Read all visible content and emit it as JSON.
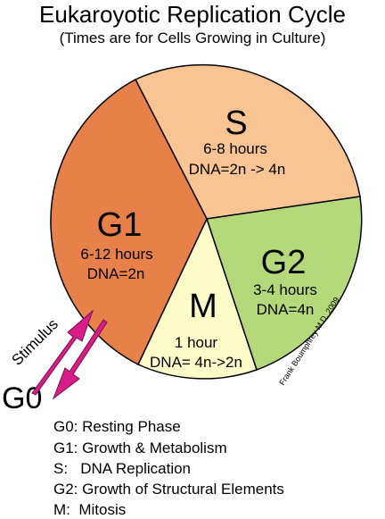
{
  "title": "Eukaroyotic Replication Cycle",
  "subtitle": "(Times are for Cells Growing in Culture)",
  "phases": {
    "s": {
      "label": "S",
      "time": "6-8 hours",
      "dna": "DNA=2n -> 4n",
      "color": "#f8c493"
    },
    "g2": {
      "label": "G2",
      "time": "3-4 hours",
      "dna": "DNA=4n",
      "color": "#b5d97a"
    },
    "m": {
      "label": "M",
      "time": "1 hour",
      "dna": "DNA= 4n->2n",
      "color": "#fdfbc8"
    },
    "g1": {
      "label": "G1",
      "time": "6-12 hours",
      "dna": "DNA=2n",
      "color": "#e8804a"
    }
  },
  "g0_label": "G0",
  "stimulus_label": "Stimulus",
  "arrow_color": "#d81c8a",
  "credit": "Frank Boumphrey M.D. 2009",
  "legend": [
    "G0: Resting Phase",
    "G1: Growth & Metabolism",
    "S:   DNA Replication",
    "G2: Growth of Structural Elements",
    "M:  Mitosis"
  ]
}
